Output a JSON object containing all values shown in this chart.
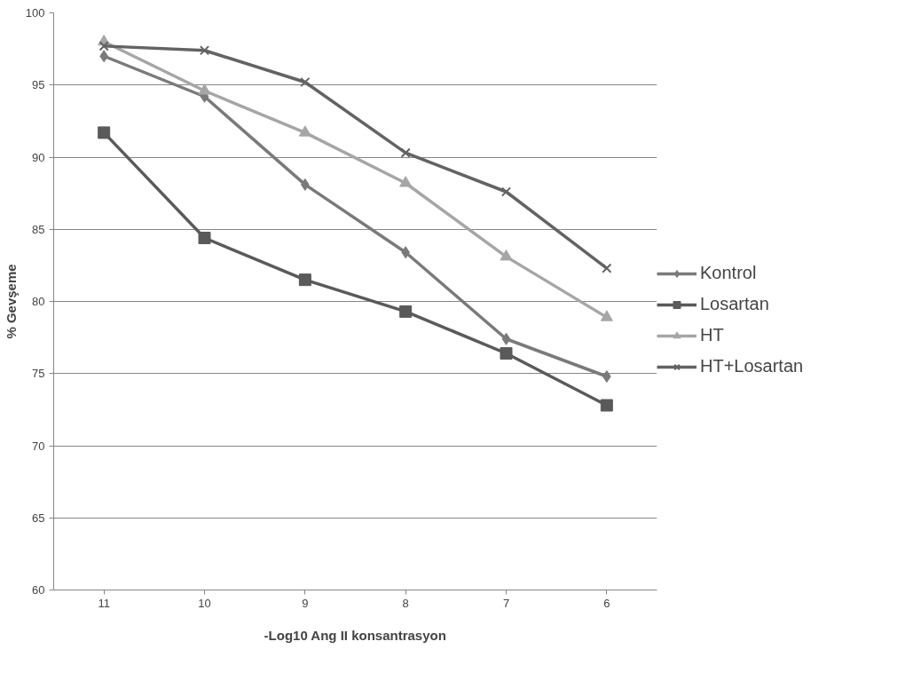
{
  "chart_data": {
    "type": "line",
    "xlabel": "-Log10 Ang II konsantrasyon",
    "ylabel": "% Gevşeme",
    "categories": [
      "11",
      "10",
      "9",
      "8",
      "7",
      "6"
    ],
    "series": [
      {
        "name": "Kontrol",
        "color": "#7a7a7a",
        "marker": "diamond",
        "values": [
          97.0,
          94.2,
          88.1,
          83.4,
          77.4,
          74.8
        ]
      },
      {
        "name": "Losartan",
        "color": "#5a5a5a",
        "marker": "square",
        "values": [
          91.7,
          84.4,
          81.5,
          79.3,
          76.4,
          72.8
        ]
      },
      {
        "name": "HT",
        "color": "#a6a6a6",
        "marker": "triangle",
        "values": [
          98.0,
          94.6,
          91.7,
          88.2,
          83.1,
          78.9
        ]
      },
      {
        "name": "HT+Losartan",
        "color": "#636363",
        "marker": "cross",
        "values": [
          97.7,
          97.4,
          95.2,
          90.3,
          87.6,
          82.3
        ]
      }
    ],
    "ylim": [
      60,
      100
    ],
    "yticks": [
      60,
      65,
      70,
      75,
      80,
      85,
      90,
      95,
      100
    ],
    "grid": "y",
    "legend": "right",
    "line_style": "solid"
  }
}
